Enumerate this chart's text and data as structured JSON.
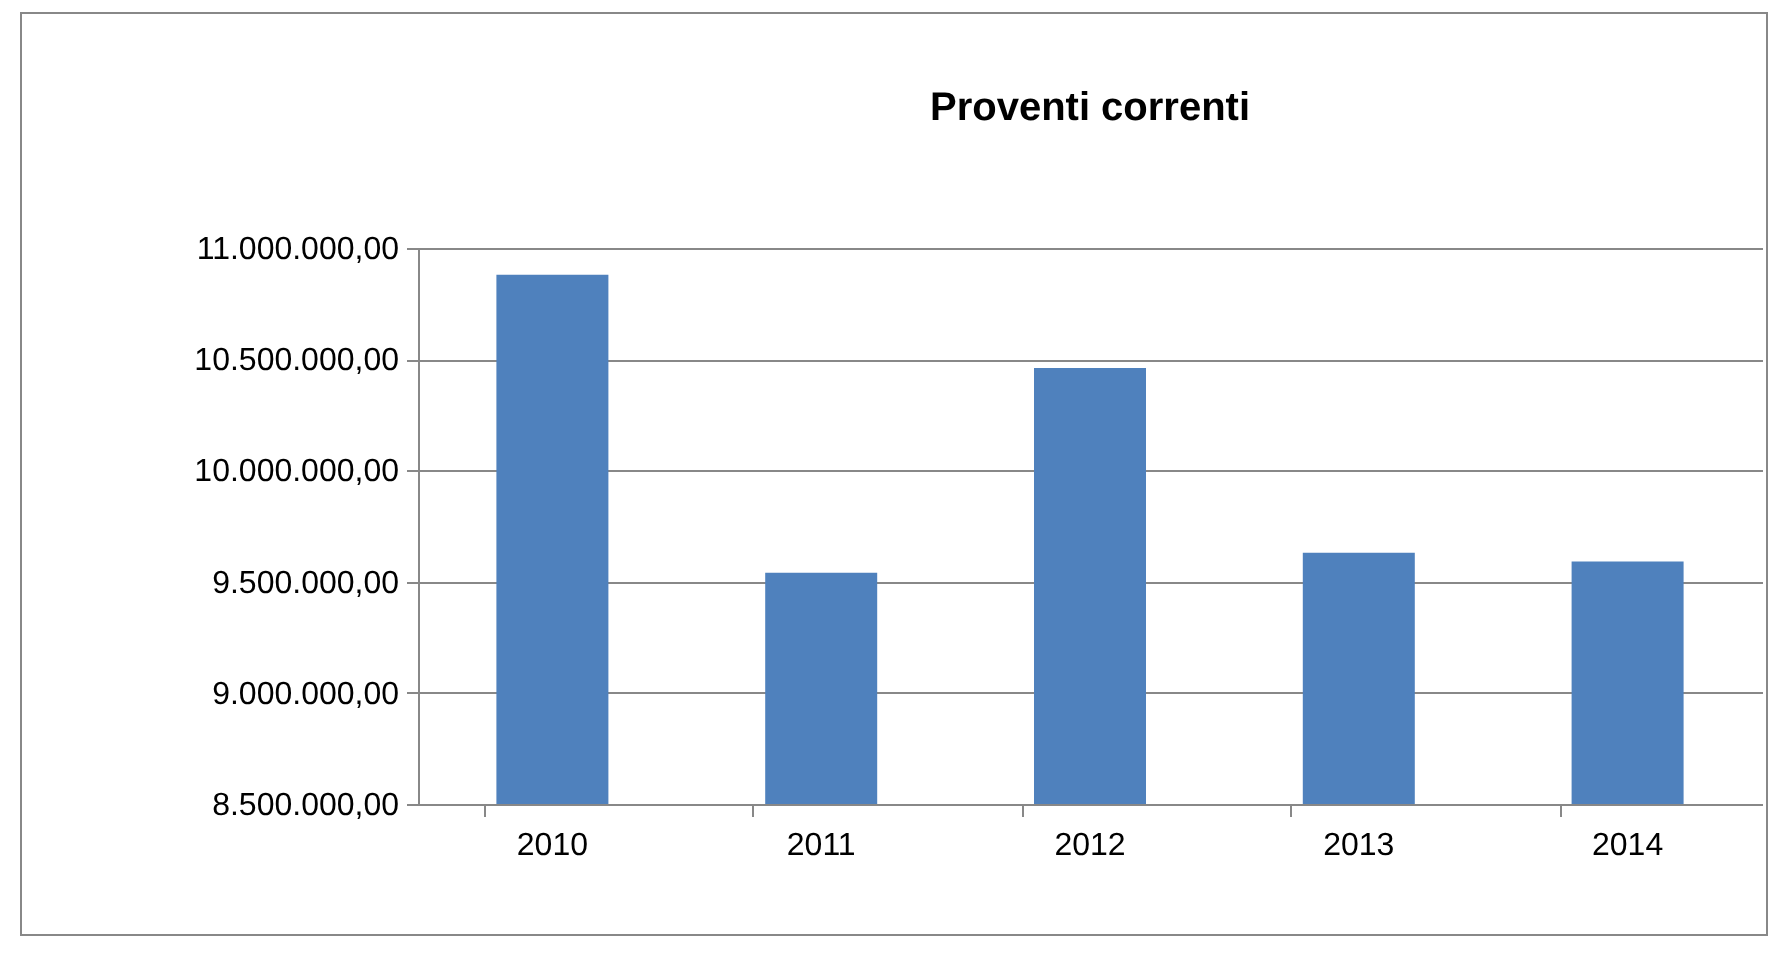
{
  "chart_data": {
    "type": "bar",
    "title": "Proventi correnti",
    "categories": [
      "2010",
      "2011",
      "2012",
      "2013",
      "2014"
    ],
    "values": [
      10880000,
      9540000,
      10460000,
      9630000,
      9590000
    ],
    "color": "#4f81bd",
    "ylim": [
      8500000,
      11000000
    ],
    "yticks": [
      {
        "value": 8500000,
        "label": "8.500.000,00"
      },
      {
        "value": 9000000,
        "label": "9.000.000,00"
      },
      {
        "value": 9500000,
        "label": "9.500.000,00"
      },
      {
        "value": 10000000,
        "label": "10.000.000,00"
      },
      {
        "value": 10500000,
        "label": "10.500.000,00"
      },
      {
        "value": 11000000,
        "label": "11.000.000,00"
      }
    ],
    "grid": "y"
  }
}
